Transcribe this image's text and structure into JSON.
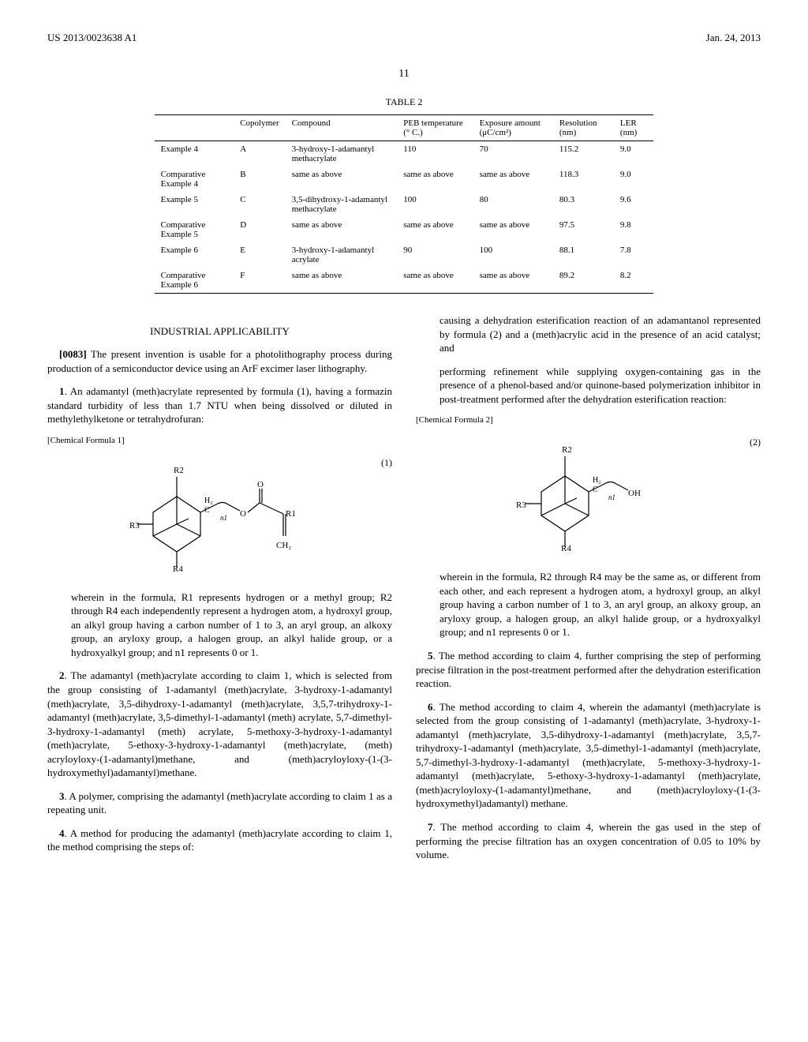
{
  "header": {
    "left": "US 2013/0023638 A1",
    "right": "Jan. 24, 2013"
  },
  "page_number": "11",
  "table": {
    "title": "TABLE 2",
    "columns": [
      "",
      "Copolymer",
      "Compound",
      "PEB temperature (° C.)",
      "Exposure amount (μC/cm²)",
      "Resolution (nm)",
      "LER (nm)"
    ],
    "rows": [
      [
        "Example 4",
        "A",
        "3-hydroxy-1-adamantyl methacrylate",
        "110",
        "70",
        "115.2",
        "9.0"
      ],
      [
        "Comparative Example 4",
        "B",
        "same as above",
        "same as above",
        "same as above",
        "118.3",
        "9.0"
      ],
      [
        "Example 5",
        "C",
        "3,5-dihydroxy-1-adamantyl methacrylate",
        "100",
        "80",
        "80.3",
        "9.6"
      ],
      [
        "Comparative Example 5",
        "D",
        "same as above",
        "same as above",
        "same as above",
        "97.5",
        "9.8"
      ],
      [
        "Example 6",
        "E",
        "3-hydroxy-1-adamantyl acrylate",
        "90",
        "100",
        "88.1",
        "7.8"
      ],
      [
        "Comparative Example 6",
        "F",
        "same as above",
        "same as above",
        "same as above",
        "89.2",
        "8.2"
      ]
    ]
  },
  "section_heading": "INDUSTRIAL APPLICABILITY",
  "paragraphs": {
    "p0083": {
      "num": "[0083]",
      "text": "The present invention is usable for a photolithography process during production of a semiconductor device using an ArF excimer laser lithography."
    }
  },
  "claims": {
    "c1": {
      "num": "1",
      "text": ". An adamantyl (meth)acrylate represented by formula (1), having a formazin standard turbidity of less than 1.7 NTU when being dissolved or diluted in methylethylketone or tetrahydrofuran:",
      "formula_label": "[Chemical Formula 1]",
      "formula_num": "(1)",
      "wherein": "wherein in the formula, R1 represents hydrogen or a methyl group; R2 through R4 each independently represent a hydrogen atom, a hydroxyl group, an alkyl group having a carbon number of 1 to 3, an aryl group, an alkoxy group, an aryloxy group, a halogen group, an alkyl halide group, or a hydroxyalkyl group; and n1 represents 0 or 1."
    },
    "c2": {
      "num": "2",
      "text": ". The adamantyl (meth)acrylate according to claim 1, which is selected from the group consisting of 1-adamantyl (meth)acrylate, 3-hydroxy-1-adamantyl (meth)acrylate, 3,5-dihydroxy-1-adamantyl (meth)acrylate, 3,5,7-trihydroxy-1-adamantyl (meth)acrylate, 3,5-dimethyl-1-adamantyl (meth) acrylate, 5,7-dimethyl-3-hydroxy-1-adamantyl (meth) acrylate, 5-methoxy-3-hydroxy-1-adamantyl (meth)acrylate, 5-ethoxy-3-hydroxy-1-adamantyl (meth)acrylate, (meth) acryloyloxy-(1-adamantyl)methane, and (meth)acryloyloxy-(1-(3-hydroxymethyl)adamantyl)methane."
    },
    "c3": {
      "num": "3",
      "text": ". A polymer, comprising the adamantyl (meth)acrylate according to claim 1 as a repeating unit."
    },
    "c4": {
      "num": "4",
      "text": ". A method for producing the adamantyl (meth)acrylate according to claim 1, the method comprising the steps of:",
      "sub1": "causing a dehydration esterification reaction of an adamantanol represented by formula (2) and a (meth)acrylic acid in the presence of an acid catalyst; and",
      "sub2": "performing refinement while supplying oxygen-containing gas in the presence of a phenol-based and/or quinone-based polymerization inhibitor in post-treatment performed after the dehydration esterification reaction:",
      "formula_label": "[Chemical Formula 2]",
      "formula_num": "(2)",
      "wherein": "wherein in the formula, R2 through R4 may be the same as, or different from each other, and each represent a hydrogen atom, a hydroxyl group, an alkyl group having a carbon number of 1 to 3, an aryl group, an alkoxy group, an aryloxy group, a halogen group, an alkyl halide group, or a hydroxyalkyl group; and n1 represents 0 or 1."
    },
    "c5": {
      "num": "5",
      "text": ". The method according to claim 4, further comprising the step of performing precise filtration in the post-treatment performed after the dehydration esterification reaction."
    },
    "c6": {
      "num": "6",
      "text": ". The method according to claim 4, wherein the adamantyl (meth)acrylate is selected from the group consisting of 1-adamantyl (meth)acrylate, 3-hydroxy-1-adamantyl (meth)acrylate, 3,5-dihydroxy-1-adamantyl (meth)acrylate, 3,5,7-trihydroxy-1-adamantyl (meth)acrylate, 3,5-dimethyl-1-adamantyl (meth)acrylate, 5,7-dimethyl-3-hydroxy-1-adamantyl (meth)acrylate, 5-methoxy-3-hydroxy-1-adamantyl (meth)acrylate, 5-ethoxy-3-hydroxy-1-adamantyl (meth)acrylate, (meth)acryloyloxy-(1-adamantyl)methane, and (meth)acryloyloxy-(1-(3-hydroxymethyl)adamantyl) methane."
    },
    "c7": {
      "num": "7",
      "text": ". The method according to claim 4, wherein the gas used in the step of performing the precise filtration has an oxygen concentration of 0.05 to 10% by volume."
    }
  }
}
